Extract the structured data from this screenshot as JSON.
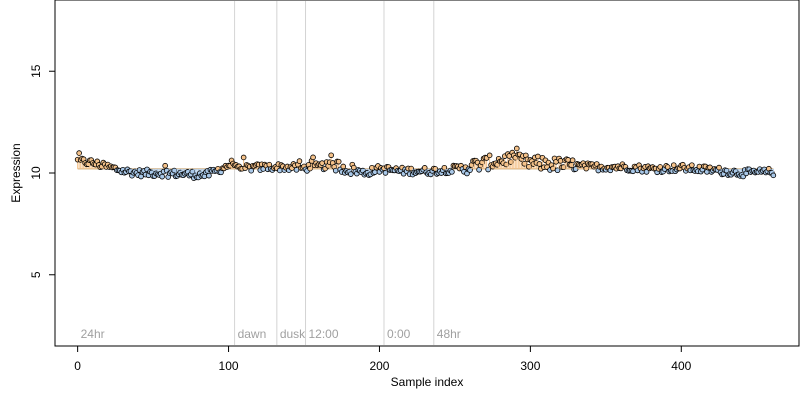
{
  "chart_data": {
    "type": "scatter",
    "xlabel": "Sample index",
    "ylabel": "Expression",
    "xlim": [
      -15,
      478
    ],
    "ylim": [
      1.5,
      18.5
    ],
    "x_ticks": [
      {
        "value": 0,
        "label": "0"
      },
      {
        "value": 100,
        "label": "100"
      },
      {
        "value": 200,
        "label": "200"
      },
      {
        "value": 300,
        "label": "300"
      },
      {
        "value": 400,
        "label": "400"
      }
    ],
    "y_ticks": [
      {
        "value": 5,
        "label": "5"
      },
      {
        "value": 10,
        "label": "10"
      },
      {
        "value": 15,
        "label": "15"
      }
    ],
    "vertical_markers": [
      {
        "x": 0,
        "label": "24hr",
        "line": false
      },
      {
        "x": 104,
        "label": "dawn",
        "line": true
      },
      {
        "x": 132,
        "label": "dusk",
        "line": true
      },
      {
        "x": 151,
        "label": "12:00",
        "line": true
      },
      {
        "x": 203,
        "label": "0:00",
        "line": true
      },
      {
        "x": 236,
        "label": "48hr",
        "line": true
      }
    ],
    "baseline": 10.2,
    "points": {
      "count": 462,
      "segments": [
        [
          0,
          10.6
        ],
        [
          10,
          10.5
        ],
        [
          20,
          10.3
        ],
        [
          30,
          10.1
        ],
        [
          40,
          10.0
        ],
        [
          55,
          10.0
        ],
        [
          70,
          9.95
        ],
        [
          85,
          9.9
        ],
        [
          95,
          10.2
        ],
        [
          103,
          10.5
        ],
        [
          110,
          10.25
        ],
        [
          130,
          10.3
        ],
        [
          150,
          10.25
        ],
        [
          170,
          10.4
        ],
        [
          180,
          10.2
        ],
        [
          190,
          10.0
        ],
        [
          200,
          10.2
        ],
        [
          215,
          10.1
        ],
        [
          235,
          10.1
        ],
        [
          250,
          10.2
        ],
        [
          265,
          10.4
        ],
        [
          285,
          10.7
        ],
        [
          300,
          10.5
        ],
        [
          320,
          10.4
        ],
        [
          340,
          10.3
        ],
        [
          360,
          10.3
        ],
        [
          380,
          10.2
        ],
        [
          400,
          10.25
        ],
        [
          420,
          10.15
        ],
        [
          440,
          10.0
        ],
        [
          461,
          10.05
        ]
      ],
      "above_color": "#f5c28a",
      "below_color": "#a9c8e8",
      "outline_color": "#000000",
      "baseline_color": "#c9a06a"
    },
    "marker_color": "#d4d4d4",
    "marker_label_color": "#a0a0a0"
  }
}
